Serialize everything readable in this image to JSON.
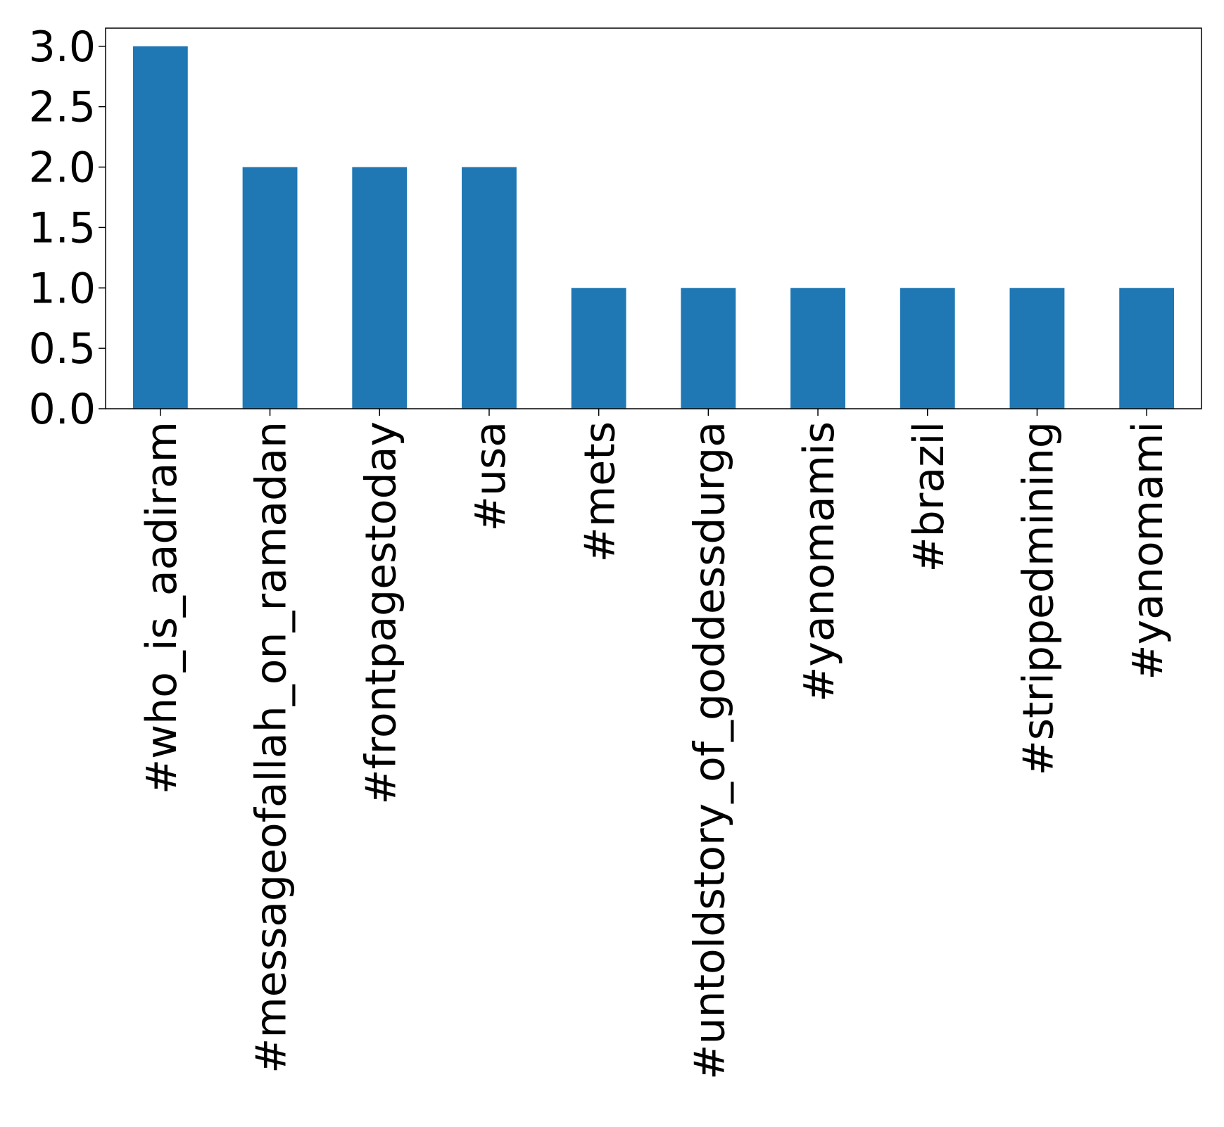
{
  "chart_data": {
    "type": "bar",
    "categories": [
      "#who_is_aadiram",
      "#messageofallah_on_ramadan",
      "#frontpagestoday",
      "#usa",
      "#mets",
      "#untoldstory_of_goddessdurga",
      "#yanomamis",
      "#brazil",
      "#strippedmining",
      "#yanomami"
    ],
    "values": [
      3,
      2,
      2,
      2,
      1,
      1,
      1,
      1,
      1,
      1
    ],
    "ylim": [
      0,
      3.15
    ],
    "yticks": [
      "0.0",
      "0.5",
      "1.0",
      "1.5",
      "2.0",
      "2.5",
      "3.0"
    ],
    "title": "",
    "xlabel": "",
    "ylabel": "",
    "grid": false,
    "colors": {
      "bar": "#1f77b4",
      "axis": "#000000",
      "background": "#ffffff"
    }
  }
}
